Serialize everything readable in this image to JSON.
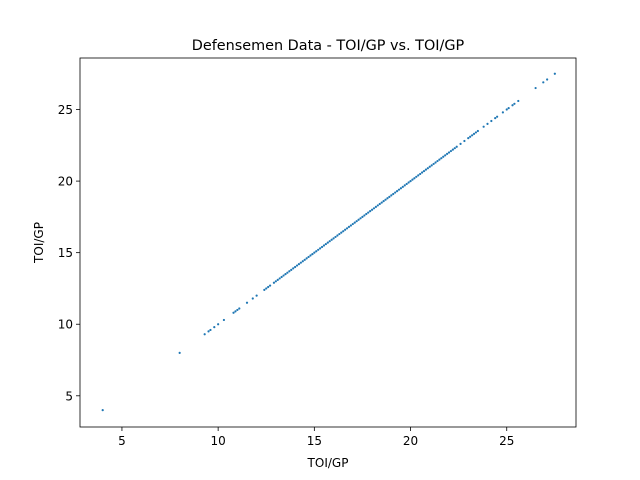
{
  "chart_data": {
    "type": "scatter",
    "title": "Defensemen Data - TOI/GP vs. TOI/GP",
    "xlabel": "TOI/GP",
    "ylabel": "TOI/GP",
    "xlim": [
      2.82,
      28.6
    ],
    "ylim": [
      2.82,
      28.6
    ],
    "xticks": [
      5,
      10,
      15,
      20,
      25
    ],
    "yticks": [
      5,
      10,
      15,
      20,
      25
    ],
    "grid": false,
    "legend": "none",
    "marker_color": "#1f77b4",
    "points": {
      "x": [
        4.0,
        8.0,
        9.3,
        9.5,
        9.6,
        9.8,
        10.0,
        10.3,
        10.8,
        10.9,
        11.0,
        11.1,
        11.5,
        11.8,
        12.0,
        12.4,
        12.5,
        12.6,
        12.7,
        12.9,
        13.0,
        13.1,
        13.2,
        13.3,
        13.4,
        13.5,
        13.6,
        13.7,
        13.8,
        13.9,
        14.0,
        14.1,
        14.2,
        14.3,
        14.4,
        14.5,
        14.6,
        14.7,
        14.8,
        14.9,
        15.0,
        15.1,
        15.2,
        15.3,
        15.4,
        15.5,
        15.6,
        15.7,
        15.8,
        15.9,
        16.0,
        16.1,
        16.2,
        16.3,
        16.4,
        16.5,
        16.6,
        16.7,
        16.8,
        16.9,
        17.0,
        17.1,
        17.2,
        17.3,
        17.4,
        17.5,
        17.6,
        17.7,
        17.8,
        17.9,
        18.0,
        18.1,
        18.2,
        18.3,
        18.4,
        18.5,
        18.6,
        18.7,
        18.8,
        18.9,
        19.0,
        19.1,
        19.2,
        19.3,
        19.4,
        19.5,
        19.6,
        19.7,
        19.8,
        19.9,
        20.0,
        20.1,
        20.2,
        20.3,
        20.4,
        20.5,
        20.6,
        20.7,
        20.8,
        20.9,
        21.0,
        21.1,
        21.2,
        21.3,
        21.4,
        21.5,
        21.6,
        21.7,
        21.8,
        21.9,
        22.0,
        22.1,
        22.2,
        22.3,
        22.4,
        22.6,
        22.8,
        23.0,
        23.1,
        23.2,
        23.3,
        23.4,
        23.5,
        23.8,
        24.0,
        24.2,
        24.4,
        24.5,
        24.8,
        25.0,
        25.1,
        25.3,
        25.4,
        25.6,
        26.5,
        26.9,
        27.1,
        27.5
      ],
      "y": [
        4.0,
        8.0,
        9.3,
        9.5,
        9.6,
        9.8,
        10.0,
        10.3,
        10.8,
        10.9,
        11.0,
        11.1,
        11.5,
        11.8,
        12.0,
        12.4,
        12.5,
        12.6,
        12.7,
        12.9,
        13.0,
        13.1,
        13.2,
        13.3,
        13.4,
        13.5,
        13.6,
        13.7,
        13.8,
        13.9,
        14.0,
        14.1,
        14.2,
        14.3,
        14.4,
        14.5,
        14.6,
        14.7,
        14.8,
        14.9,
        15.0,
        15.1,
        15.2,
        15.3,
        15.4,
        15.5,
        15.6,
        15.7,
        15.8,
        15.9,
        16.0,
        16.1,
        16.2,
        16.3,
        16.4,
        16.5,
        16.6,
        16.7,
        16.8,
        16.9,
        17.0,
        17.1,
        17.2,
        17.3,
        17.4,
        17.5,
        17.6,
        17.7,
        17.8,
        17.9,
        18.0,
        18.1,
        18.2,
        18.3,
        18.4,
        18.5,
        18.6,
        18.7,
        18.8,
        18.9,
        19.0,
        19.1,
        19.2,
        19.3,
        19.4,
        19.5,
        19.6,
        19.7,
        19.8,
        19.9,
        20.0,
        20.1,
        20.2,
        20.3,
        20.4,
        20.5,
        20.6,
        20.7,
        20.8,
        20.9,
        21.0,
        21.1,
        21.2,
        21.3,
        21.4,
        21.5,
        21.6,
        21.7,
        21.8,
        21.9,
        22.0,
        22.1,
        22.2,
        22.3,
        22.4,
        22.6,
        22.8,
        23.0,
        23.1,
        23.2,
        23.3,
        23.4,
        23.5,
        23.8,
        24.0,
        24.2,
        24.4,
        24.5,
        24.8,
        25.0,
        25.1,
        25.3,
        25.4,
        25.6,
        26.5,
        26.9,
        27.1,
        27.5
      ]
    }
  }
}
